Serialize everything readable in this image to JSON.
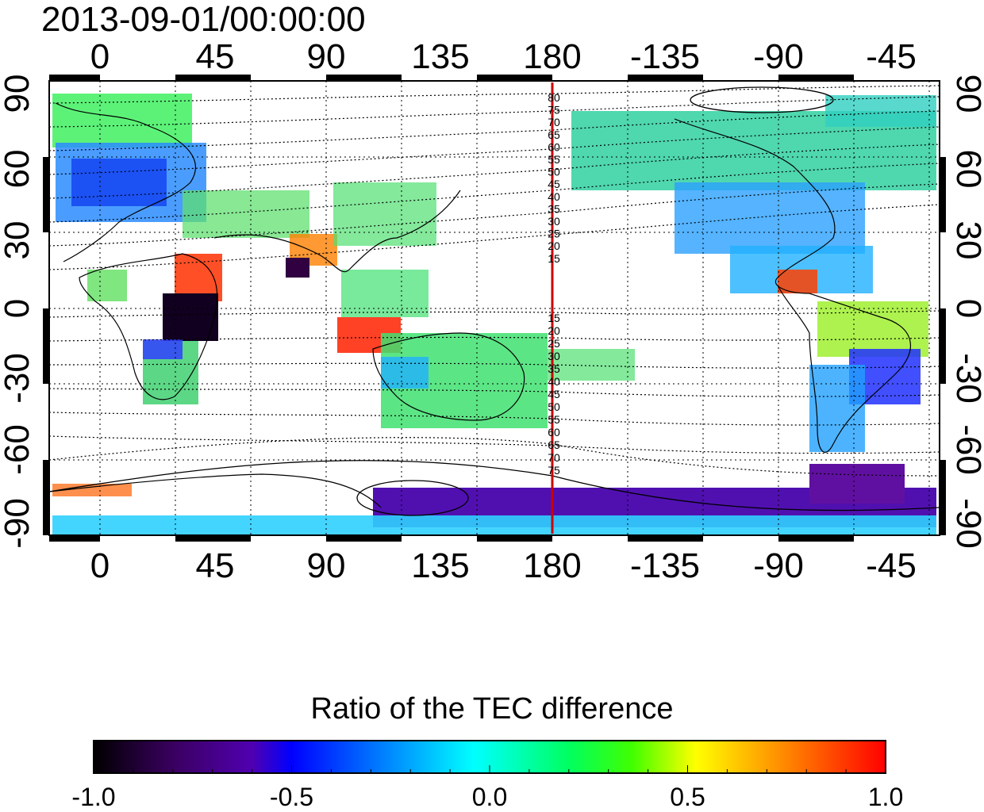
{
  "title": "2013-09-01/00:00:00",
  "map": {
    "x_tick_labels": [
      "0",
      "45",
      "90",
      "135",
      "180",
      "-135",
      "-90",
      "-45"
    ],
    "y_tick_labels": [
      "90",
      "60",
      "30",
      "0",
      "-30",
      "-60",
      "-90"
    ],
    "meridian_label": "180",
    "meridian_color": "#cc0000",
    "contour_labels_north": [
      "80",
      "75",
      "70",
      "65",
      "60",
      "55",
      "50",
      "45",
      "40",
      "35",
      "30",
      "25",
      "20",
      "15"
    ],
    "contour_labels_south": [
      "15",
      "20",
      "25",
      "30",
      "35",
      "40",
      "45",
      "50",
      "55",
      "60",
      "65",
      "70",
      "75"
    ],
    "grid": "dotted",
    "coastlines": "black"
  },
  "colorbar": {
    "title": "Ratio of the TEC difference",
    "tick_labels": [
      "-1.0",
      "-0.5",
      "0.0",
      "0.5",
      "1.0"
    ],
    "min": -1.0,
    "max": 1.0,
    "colors": [
      "#000000",
      "#3a0060",
      "#5000b0",
      "#0000ff",
      "#0090ff",
      "#00ffff",
      "#00ff60",
      "#40ff00",
      "#ffff00",
      "#ff8000",
      "#ff0000"
    ]
  }
}
